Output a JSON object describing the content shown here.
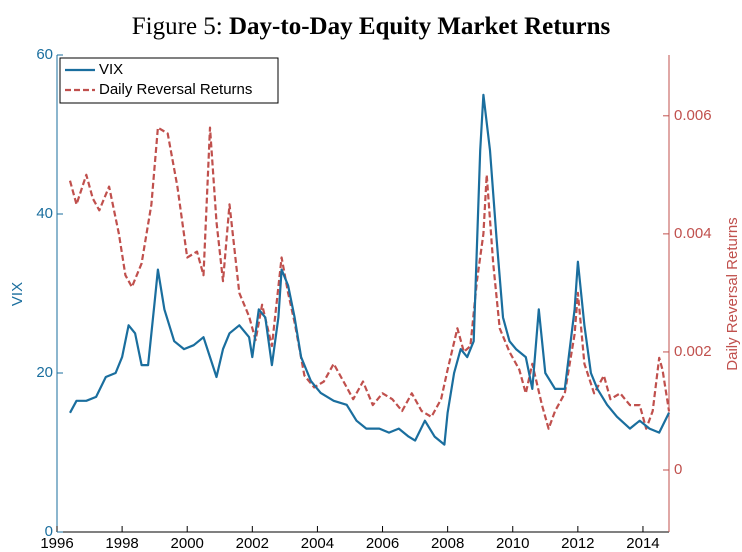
{
  "chart_data": {
    "type": "line",
    "figure_label": "Figure 5:",
    "title": "Day-to-Day Equity Market Returns",
    "ylabel": "VIX",
    "y2label": "Daily Reversal Returns",
    "xlim": [
      1996,
      2014.8
    ],
    "xticks": [
      1996,
      1998,
      2000,
      2002,
      2004,
      2006,
      2008,
      2010,
      2012,
      2014
    ],
    "ylim": [
      0,
      60
    ],
    "yticks": [
      0,
      20,
      40,
      60
    ],
    "y2lim": [
      -0.00105,
      0.00703
    ],
    "y2ticks": [
      0,
      0.002,
      0.004,
      0.006
    ],
    "legend": "upper left",
    "series": [
      {
        "name": "VIX",
        "color": "#1a6e9e",
        "dash": false,
        "x": [
          1996.4,
          1996.6,
          1996.9,
          1997.2,
          1997.5,
          1997.8,
          1998.0,
          1998.2,
          1998.4,
          1998.6,
          1998.8,
          1999.0,
          1999.1,
          1999.3,
          1999.6,
          1999.9,
          2000.2,
          2000.5,
          2000.7,
          2000.9,
          2001.1,
          2001.3,
          2001.6,
          2001.9,
          2002.0,
          2002.2,
          2002.4,
          2002.6,
          2002.8,
          2002.9,
          2003.1,
          2003.3,
          2003.5,
          2003.8,
          2004.1,
          2004.5,
          2004.9,
          2005.2,
          2005.5,
          2005.9,
          2006.2,
          2006.5,
          2006.8,
          2007.0,
          2007.3,
          2007.6,
          2007.9,
          2008.0,
          2008.2,
          2008.4,
          2008.6,
          2008.8,
          2009.0,
          2009.1,
          2009.3,
          2009.5,
          2009.7,
          2009.9,
          2010.1,
          2010.4,
          2010.6,
          2010.8,
          2011.0,
          2011.3,
          2011.6,
          2011.9,
          2012.0,
          2012.2,
          2012.4,
          2012.6,
          2012.9,
          2013.2,
          2013.6,
          2013.9,
          2014.2,
          2014.5,
          2014.8
        ],
        "values": [
          15,
          16.5,
          16.5,
          17,
          19.5,
          20,
          22,
          26,
          25,
          21,
          21,
          29,
          33,
          28,
          24,
          23,
          23.5,
          24.5,
          22,
          19.5,
          23,
          25,
          26,
          24.5,
          22,
          28,
          27,
          21,
          27,
          33,
          31,
          27,
          22,
          19,
          17.5,
          16.5,
          16,
          14,
          13,
          13,
          12.5,
          13,
          12,
          11.5,
          14,
          12,
          11,
          15,
          20,
          23,
          22,
          24,
          48,
          55,
          48,
          37,
          27,
          24,
          23,
          22,
          18,
          28,
          20,
          18,
          18,
          28,
          34,
          26,
          20,
          18,
          16,
          14.5,
          13,
          14,
          13,
          12.5,
          15
        ]
      },
      {
        "name": "Daily Reversal Returns",
        "color": "#c0504d",
        "dash": true,
        "axis": "y2",
        "x": [
          1996.4,
          1996.6,
          1996.9,
          1997.1,
          1997.3,
          1997.6,
          1997.9,
          1998.1,
          1998.3,
          1998.6,
          1998.9,
          1999.1,
          1999.4,
          1999.7,
          2000.0,
          2000.3,
          2000.5,
          2000.7,
          2000.9,
          2001.1,
          2001.3,
          2001.6,
          2001.9,
          2002.1,
          2002.3,
          2002.6,
          2002.9,
          2003.1,
          2003.3,
          2003.6,
          2003.9,
          2004.2,
          2004.5,
          2004.8,
          2005.1,
          2005.4,
          2005.7,
          2006.0,
          2006.3,
          2006.6,
          2006.9,
          2007.2,
          2007.5,
          2007.8,
          2008.0,
          2008.3,
          2008.5,
          2008.7,
          2008.9,
          2009.1,
          2009.2,
          2009.4,
          2009.6,
          2009.9,
          2010.2,
          2010.4,
          2010.6,
          2010.9,
          2011.1,
          2011.3,
          2011.6,
          2011.9,
          2012.0,
          2012.2,
          2012.5,
          2012.8,
          2013.0,
          2013.3,
          2013.6,
          2013.9,
          2014.1,
          2014.3,
          2014.5,
          2014.6,
          2014.8
        ],
        "values": [
          0.0049,
          0.0045,
          0.005,
          0.0046,
          0.0044,
          0.0048,
          0.004,
          0.0033,
          0.0031,
          0.0035,
          0.0045,
          0.0058,
          0.0057,
          0.0048,
          0.0036,
          0.0037,
          0.0033,
          0.0058,
          0.0042,
          0.0032,
          0.0045,
          0.003,
          0.0026,
          0.0022,
          0.0028,
          0.0021,
          0.0036,
          0.003,
          0.0025,
          0.0016,
          0.0014,
          0.0015,
          0.0018,
          0.0015,
          0.0012,
          0.0015,
          0.0011,
          0.0013,
          0.0012,
          0.001,
          0.0013,
          0.001,
          0.0009,
          0.0012,
          0.0017,
          0.0024,
          0.002,
          0.0021,
          0.0032,
          0.004,
          0.005,
          0.0035,
          0.0024,
          0.002,
          0.0017,
          0.0013,
          0.0018,
          0.0011,
          0.0007,
          0.001,
          0.0013,
          0.0023,
          0.003,
          0.0018,
          0.0013,
          0.0016,
          0.0012,
          0.0013,
          0.0011,
          0.0011,
          0.0007,
          0.001,
          0.0019,
          0.0017,
          0.001
        ]
      }
    ]
  }
}
